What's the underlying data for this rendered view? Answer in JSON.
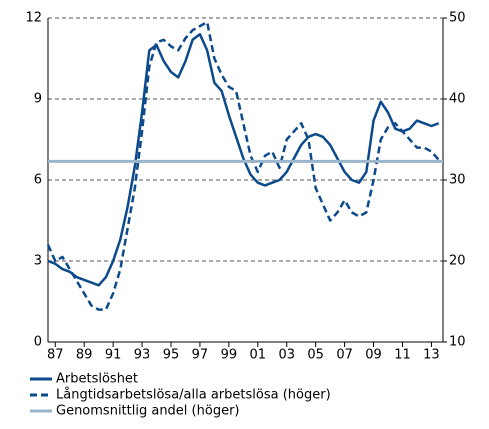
{
  "chart_data": {
    "type": "line",
    "x": [
      1986.5,
      1987,
      1987.5,
      1988,
      1988.5,
      1989,
      1989.5,
      1990,
      1990.5,
      1991,
      1991.5,
      1992,
      1992.5,
      1993,
      1993.5,
      1994,
      1994.5,
      1995,
      1995.5,
      1996,
      1996.5,
      1997,
      1997.5,
      1998,
      1998.5,
      1999,
      1999.5,
      2000,
      2000.5,
      2001,
      2001.5,
      2002,
      2002.5,
      2003,
      2003.5,
      2004,
      2004.5,
      2005,
      2005.5,
      2006,
      2006.5,
      2007,
      2007.5,
      2008,
      2008.5,
      2009,
      2009.5,
      2010,
      2010.5,
      2011,
      2011.5,
      2012,
      2012.5,
      2013,
      2013.5
    ],
    "series": [
      {
        "name": "Arbetslöshet",
        "color": "#0d4a8c",
        "dash": false,
        "values": [
          3.0,
          2.9,
          2.7,
          2.6,
          2.4,
          2.3,
          2.2,
          2.1,
          2.4,
          3.0,
          3.8,
          5.0,
          6.5,
          8.5,
          10.8,
          11.0,
          10.4,
          10.0,
          9.8,
          10.4,
          11.2,
          11.4,
          10.8,
          9.6,
          9.3,
          8.4,
          7.6,
          6.8,
          6.2,
          5.9,
          5.8,
          5.9,
          6.0,
          6.3,
          6.8,
          7.3,
          7.6,
          7.7,
          7.6,
          7.3,
          6.8,
          6.3,
          6.0,
          5.9,
          6.3,
          8.2,
          8.9,
          8.5,
          7.9,
          7.8,
          7.9,
          8.2,
          8.1,
          8.0,
          8.1
        ]
      },
      {
        "name": "Långtidsarbetslösa/alla arbetslösa (höger)",
        "color": "#0d4a8c",
        "dash": true,
        "axis": "y2",
        "values": [
          22,
          20,
          20.5,
          19,
          17.5,
          16,
          14.5,
          14,
          14,
          16,
          19,
          24,
          29,
          36,
          44,
          47,
          47.3,
          46.5,
          46,
          47.5,
          48.5,
          49,
          49.5,
          45,
          43,
          41.5,
          41,
          37,
          33,
          31,
          33,
          33.5,
          31.5,
          35,
          36,
          37,
          35,
          29,
          27,
          25,
          26,
          27.5,
          26,
          25.5,
          26,
          30,
          35,
          36.5,
          37,
          36,
          35,
          34,
          34,
          33.5,
          32.5
        ]
      },
      {
        "name": "Genomsnittlig andel (höger)",
        "color": "#9bb5cc",
        "dash": false,
        "axis": "y2",
        "x": [
          1986.5,
          2013.8
        ],
        "values": [
          32.3,
          32.3
        ]
      }
    ],
    "xlim": [
      1986.5,
      2013.8
    ],
    "xticks": [
      {
        "value": 1987,
        "label": "87"
      },
      {
        "value": 1989,
        "label": "89"
      },
      {
        "value": 1991,
        "label": "91"
      },
      {
        "value": 1993,
        "label": "93"
      },
      {
        "value": 1995,
        "label": "95"
      },
      {
        "value": 1997,
        "label": "97"
      },
      {
        "value": 1999,
        "label": "99"
      },
      {
        "value": 2001,
        "label": "01"
      },
      {
        "value": 2003,
        "label": "03"
      },
      {
        "value": 2005,
        "label": "05"
      },
      {
        "value": 2007,
        "label": "07"
      },
      {
        "value": 2009,
        "label": "09"
      },
      {
        "value": 2011,
        "label": "11"
      },
      {
        "value": 2013,
        "label": "13"
      }
    ],
    "ylim": [
      0,
      12
    ],
    "yticks": [
      0,
      3,
      6,
      9,
      12
    ],
    "y2lim": [
      10,
      50
    ],
    "y2ticks": [
      10,
      20,
      30,
      40,
      50
    ],
    "grid": true
  }
}
